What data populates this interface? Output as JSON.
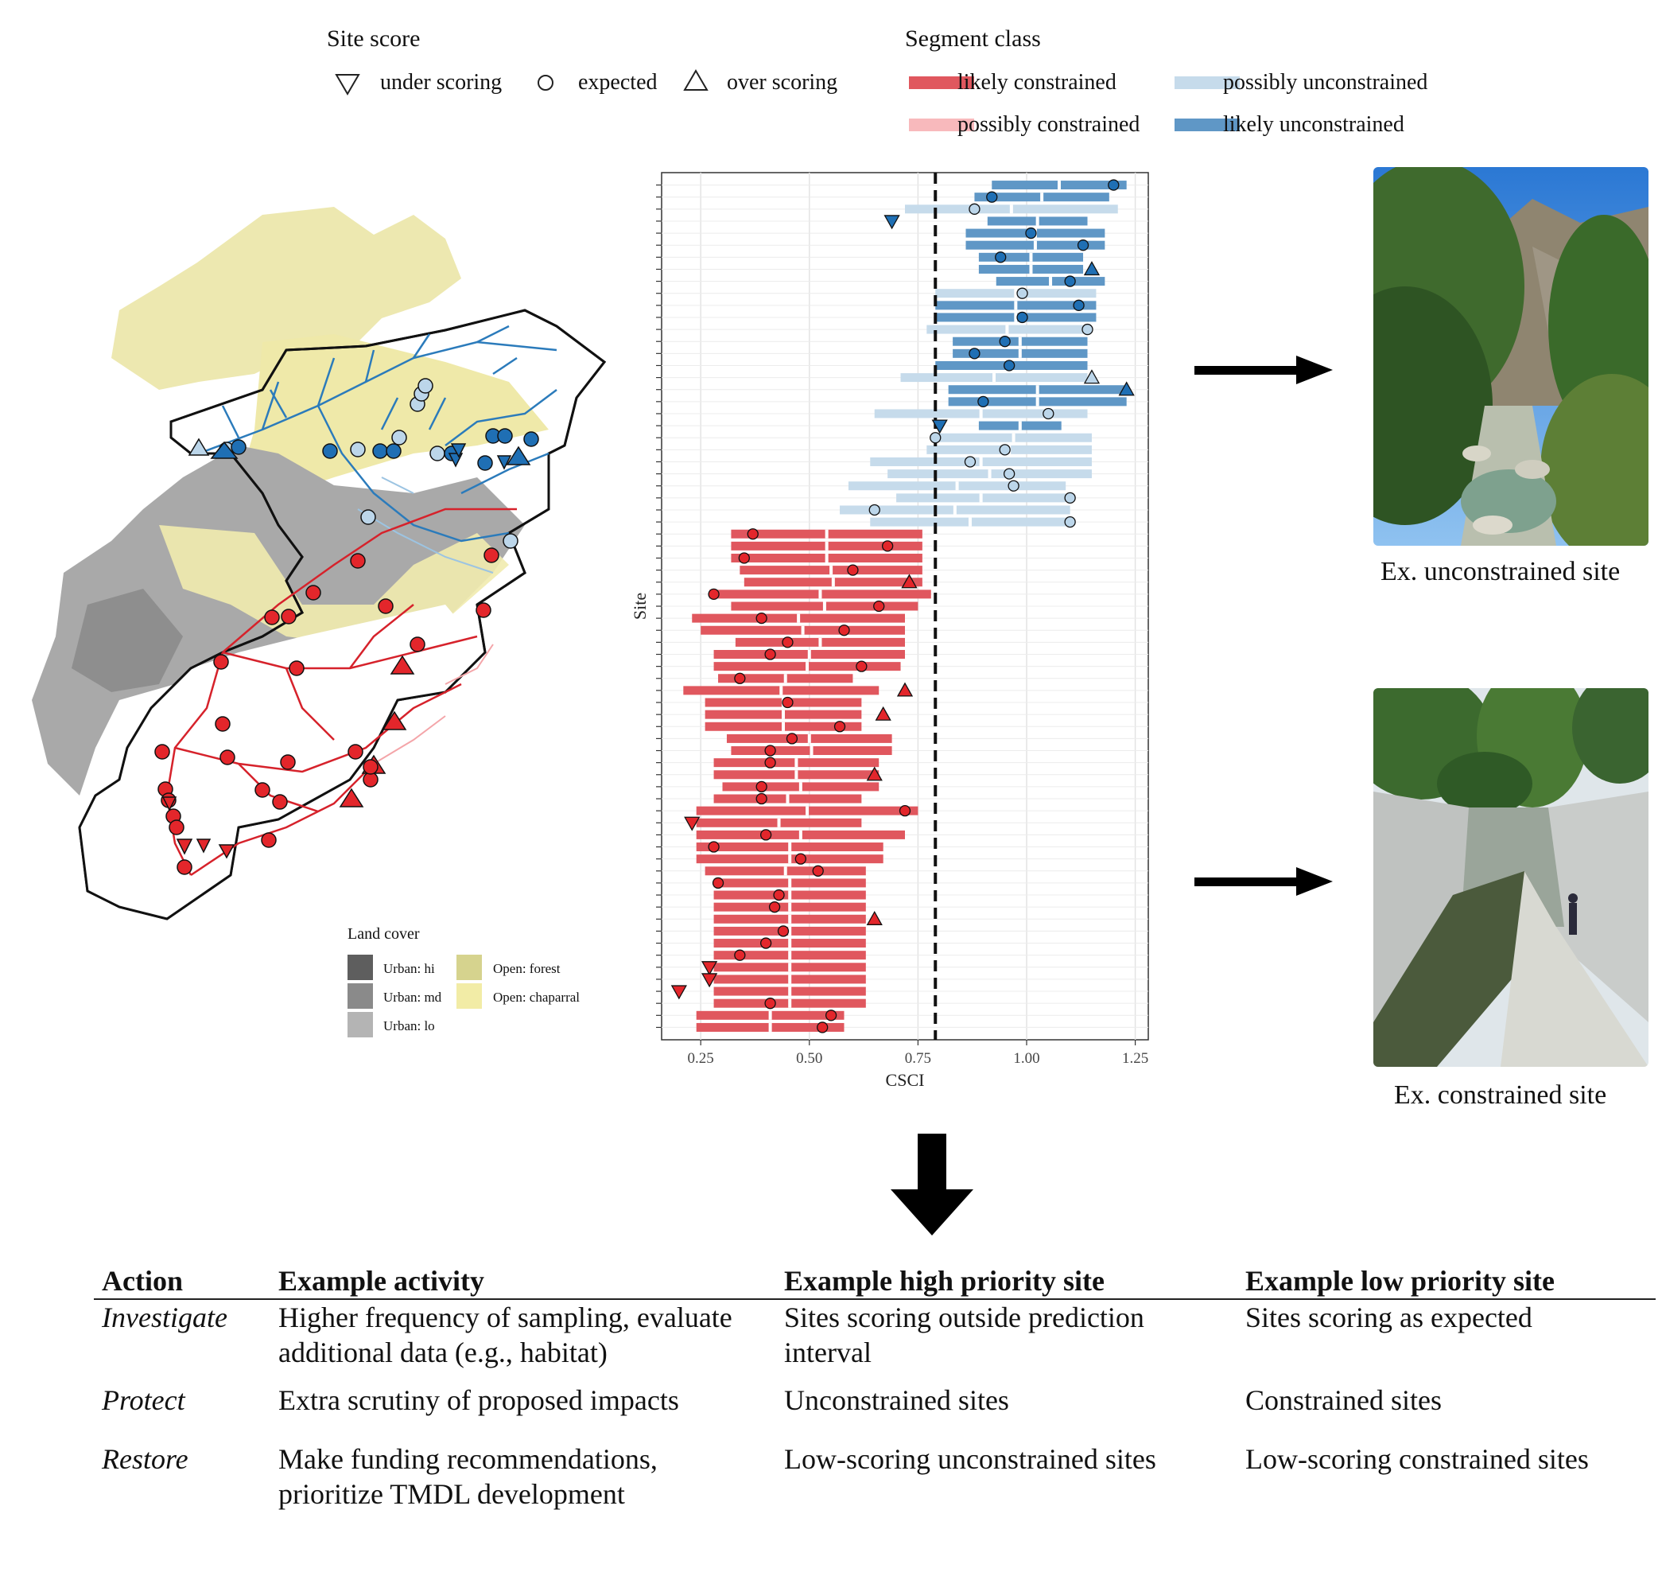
{
  "legend_site_score": {
    "title": "Site score",
    "items": [
      {
        "symbol": "triangle-down",
        "label": "under scoring"
      },
      {
        "symbol": "circle",
        "label": "expected"
      },
      {
        "symbol": "triangle-up",
        "label": "over scoring"
      }
    ]
  },
  "legend_segment_class": {
    "title": "Segment class",
    "items": [
      {
        "label": "likely constrained",
        "color": "#e0575e"
      },
      {
        "label": "possibly unconstrained",
        "color": "#c6dbeb"
      },
      {
        "label": "possibly constrained",
        "color": "#f8b9bc"
      },
      {
        "label": "likely unconstrained",
        "color": "#5f97c6"
      }
    ]
  },
  "legend_land_cover": {
    "title": "Land cover",
    "items": [
      {
        "label": "Urban: hi",
        "color": "#5e5e5e"
      },
      {
        "label": "Open: forest",
        "color": "#d6d38e"
      },
      {
        "label": "Urban: md",
        "color": "#8a8a8a"
      },
      {
        "label": "Open: chaparral",
        "color": "#f2eca6"
      },
      {
        "label": "Urban: lo",
        "color": "#b4b4b4"
      }
    ]
  },
  "chart_data": {
    "type": "scatter",
    "xlabel": "CSCI",
    "ylabel": "Site",
    "x_ticks": [
      "0.25",
      "0.50",
      "0.75",
      "1.00",
      "1.25"
    ],
    "xlim": [
      0.16,
      1.28
    ],
    "threshold": 0.79,
    "colors": {
      "lc": "#e0575e",
      "pc": "#f8b9bc",
      "pu": "#c6dbeb",
      "lu": "#5f97c6",
      "pt_red": "#e3262b",
      "pt_blue": "#1f6fb4",
      "pt_lblue": "#bcd6ea"
    },
    "sites": [
      {
        "lo": 0.92,
        "hi": 1.23,
        "csci": 1.2,
        "seg": "lu",
        "score": "expected"
      },
      {
        "lo": 0.88,
        "hi": 1.19,
        "csci": 0.92,
        "seg": "lu",
        "score": "expected"
      },
      {
        "lo": 0.72,
        "hi": 1.21,
        "csci": 0.88,
        "seg": "pu",
        "score": "expected"
      },
      {
        "lo": 0.91,
        "hi": 1.14,
        "csci": 0.69,
        "seg": "lu",
        "score": "under scoring"
      },
      {
        "lo": 0.86,
        "hi": 1.18,
        "csci": 1.01,
        "seg": "lu",
        "score": "expected"
      },
      {
        "lo": 0.86,
        "hi": 1.18,
        "csci": 1.13,
        "seg": "lu",
        "score": "expected"
      },
      {
        "lo": 0.89,
        "hi": 1.13,
        "csci": 0.94,
        "seg": "lu",
        "score": "expected"
      },
      {
        "lo": 0.89,
        "hi": 1.13,
        "csci": 1.15,
        "seg": "lu",
        "score": "over scoring"
      },
      {
        "lo": 0.93,
        "hi": 1.18,
        "csci": 1.1,
        "seg": "lu",
        "score": "expected"
      },
      {
        "lo": 0.79,
        "hi": 1.16,
        "csci": 0.99,
        "seg": "pu",
        "score": "expected"
      },
      {
        "lo": 0.79,
        "hi": 1.16,
        "csci": 1.12,
        "seg": "lu",
        "score": "expected"
      },
      {
        "lo": 0.79,
        "hi": 1.16,
        "csci": 0.99,
        "seg": "lu",
        "score": "expected"
      },
      {
        "lo": 0.77,
        "hi": 1.14,
        "csci": 1.14,
        "seg": "pu",
        "score": "expected"
      },
      {
        "lo": 0.83,
        "hi": 1.14,
        "csci": 0.95,
        "seg": "lu",
        "score": "expected"
      },
      {
        "lo": 0.83,
        "hi": 1.14,
        "csci": 0.88,
        "seg": "lu",
        "score": "expected"
      },
      {
        "lo": 0.79,
        "hi": 1.14,
        "csci": 0.96,
        "seg": "lu",
        "score": "expected"
      },
      {
        "lo": 0.71,
        "hi": 1.14,
        "csci": 1.15,
        "seg": "pu",
        "score": "over scoring"
      },
      {
        "lo": 0.82,
        "hi": 1.23,
        "csci": 1.23,
        "seg": "lu",
        "score": "over scoring"
      },
      {
        "lo": 0.82,
        "hi": 1.23,
        "csci": 0.9,
        "seg": "lu",
        "score": "expected"
      },
      {
        "lo": 0.65,
        "hi": 1.14,
        "csci": 1.05,
        "seg": "pu",
        "score": "expected"
      },
      {
        "lo": 0.89,
        "hi": 1.08,
        "csci": 0.8,
        "seg": "lu",
        "score": "under scoring"
      },
      {
        "lo": 0.79,
        "hi": 1.15,
        "csci": 0.79,
        "seg": "pu",
        "score": "expected"
      },
      {
        "lo": 0.77,
        "hi": 1.15,
        "csci": 0.95,
        "seg": "pu",
        "score": "expected"
      },
      {
        "lo": 0.64,
        "hi": 1.15,
        "csci": 0.87,
        "seg": "pu",
        "score": "expected"
      },
      {
        "lo": 0.68,
        "hi": 1.15,
        "csci": 0.96,
        "seg": "pu",
        "score": "expected"
      },
      {
        "lo": 0.59,
        "hi": 1.09,
        "csci": 0.97,
        "seg": "pu",
        "score": "expected"
      },
      {
        "lo": 0.7,
        "hi": 1.09,
        "csci": 1.1,
        "seg": "pu",
        "score": "expected"
      },
      {
        "lo": 0.57,
        "hi": 1.1,
        "csci": 0.65,
        "seg": "pu",
        "score": "expected"
      },
      {
        "lo": 0.64,
        "hi": 1.1,
        "csci": 1.1,
        "seg": "pu",
        "score": "expected"
      },
      {
        "lo": 0.32,
        "hi": 0.76,
        "csci": 0.37,
        "seg": "lc",
        "score": "expected"
      },
      {
        "lo": 0.32,
        "hi": 0.76,
        "csci": 0.68,
        "seg": "lc",
        "score": "expected"
      },
      {
        "lo": 0.32,
        "hi": 0.76,
        "csci": 0.35,
        "seg": "lc",
        "score": "expected"
      },
      {
        "lo": 0.34,
        "hi": 0.76,
        "csci": 0.6,
        "seg": "lc",
        "score": "expected"
      },
      {
        "lo": 0.35,
        "hi": 0.76,
        "csci": 0.73,
        "seg": "lc",
        "score": "over scoring"
      },
      {
        "lo": 0.27,
        "hi": 0.78,
        "csci": 0.28,
        "seg": "lc",
        "score": "expected"
      },
      {
        "lo": 0.32,
        "hi": 0.75,
        "csci": 0.66,
        "seg": "lc",
        "score": "expected"
      },
      {
        "lo": 0.23,
        "hi": 0.72,
        "csci": 0.39,
        "seg": "lc",
        "score": "expected"
      },
      {
        "lo": 0.25,
        "hi": 0.72,
        "csci": 0.58,
        "seg": "lc",
        "score": "expected"
      },
      {
        "lo": 0.33,
        "hi": 0.72,
        "csci": 0.45,
        "seg": "lc",
        "score": "expected"
      },
      {
        "lo": 0.28,
        "hi": 0.72,
        "csci": 0.41,
        "seg": "lc",
        "score": "expected"
      },
      {
        "lo": 0.28,
        "hi": 0.71,
        "csci": 0.62,
        "seg": "lc",
        "score": "expected"
      },
      {
        "lo": 0.29,
        "hi": 0.6,
        "csci": 0.34,
        "seg": "lc",
        "score": "expected"
      },
      {
        "lo": 0.21,
        "hi": 0.66,
        "csci": 0.72,
        "seg": "lc",
        "score": "over scoring"
      },
      {
        "lo": 0.26,
        "hi": 0.62,
        "csci": 0.45,
        "seg": "lc",
        "score": "expected"
      },
      {
        "lo": 0.26,
        "hi": 0.62,
        "csci": 0.67,
        "seg": "lc",
        "score": "over scoring"
      },
      {
        "lo": 0.26,
        "hi": 0.62,
        "csci": 0.57,
        "seg": "lc",
        "score": "expected"
      },
      {
        "lo": 0.31,
        "hi": 0.69,
        "csci": 0.46,
        "seg": "lc",
        "score": "expected"
      },
      {
        "lo": 0.32,
        "hi": 0.69,
        "csci": 0.41,
        "seg": "lc",
        "score": "expected"
      },
      {
        "lo": 0.28,
        "hi": 0.66,
        "csci": 0.41,
        "seg": "lc",
        "score": "expected"
      },
      {
        "lo": 0.28,
        "hi": 0.66,
        "csci": 0.65,
        "seg": "lc",
        "score": "over scoring"
      },
      {
        "lo": 0.3,
        "hi": 0.66,
        "csci": 0.39,
        "seg": "lc",
        "score": "expected"
      },
      {
        "lo": 0.28,
        "hi": 0.62,
        "csci": 0.39,
        "seg": "lc",
        "score": "expected"
      },
      {
        "lo": 0.24,
        "hi": 0.75,
        "csci": 0.72,
        "seg": "lc",
        "score": "expected"
      },
      {
        "lo": 0.24,
        "hi": 0.62,
        "csci": 0.23,
        "seg": "lc",
        "score": "under scoring"
      },
      {
        "lo": 0.24,
        "hi": 0.72,
        "csci": 0.4,
        "seg": "lc",
        "score": "expected"
      },
      {
        "lo": 0.24,
        "hi": 0.67,
        "csci": 0.28,
        "seg": "lc",
        "score": "expected"
      },
      {
        "lo": 0.24,
        "hi": 0.67,
        "csci": 0.48,
        "seg": "lc",
        "score": "expected"
      },
      {
        "lo": 0.26,
        "hi": 0.63,
        "csci": 0.52,
        "seg": "lc",
        "score": "expected"
      },
      {
        "lo": 0.28,
        "hi": 0.63,
        "csci": 0.29,
        "seg": "lc",
        "score": "expected"
      },
      {
        "lo": 0.28,
        "hi": 0.63,
        "csci": 0.43,
        "seg": "lc",
        "score": "expected"
      },
      {
        "lo": 0.28,
        "hi": 0.63,
        "csci": 0.42,
        "seg": "lc",
        "score": "expected"
      },
      {
        "lo": 0.28,
        "hi": 0.63,
        "csci": 0.65,
        "seg": "lc",
        "score": "over scoring"
      },
      {
        "lo": 0.28,
        "hi": 0.63,
        "csci": 0.44,
        "seg": "lc",
        "score": "expected"
      },
      {
        "lo": 0.28,
        "hi": 0.63,
        "csci": 0.4,
        "seg": "lc",
        "score": "expected"
      },
      {
        "lo": 0.28,
        "hi": 0.63,
        "csci": 0.34,
        "seg": "lc",
        "score": "expected"
      },
      {
        "lo": 0.28,
        "hi": 0.63,
        "csci": 0.27,
        "seg": "lc",
        "score": "under scoring"
      },
      {
        "lo": 0.28,
        "hi": 0.63,
        "csci": 0.27,
        "seg": "lc",
        "score": "under scoring"
      },
      {
        "lo": 0.28,
        "hi": 0.63,
        "csci": 0.2,
        "seg": "lc",
        "score": "under scoring"
      },
      {
        "lo": 0.28,
        "hi": 0.63,
        "csci": 0.41,
        "seg": "lc",
        "score": "expected"
      },
      {
        "lo": 0.24,
        "hi": 0.58,
        "csci": 0.55,
        "seg": "lc",
        "score": "expected"
      },
      {
        "lo": 0.24,
        "hi": 0.58,
        "csci": 0.53,
        "seg": "lc",
        "score": "expected"
      }
    ]
  },
  "arrows": [
    "right-arrow",
    "right-arrow",
    "down-arrow"
  ],
  "photo_captions": {
    "unconstrained": "Ex. unconstrained site",
    "constrained": "Ex. constrained site"
  },
  "actions_table": {
    "headers": [
      "Action",
      "Example activity",
      "Example high priority site",
      "Example low priority site"
    ],
    "rows": [
      {
        "action": "Investigate",
        "activity": "Higher frequency of sampling, evaluate additional data (e.g., habitat)",
        "high": "Sites scoring outside prediction interval",
        "low": "Sites scoring as expected"
      },
      {
        "action": "Protect",
        "activity": "Extra scrutiny of proposed impacts",
        "high": "Unconstrained sites",
        "low": "Constrained sites"
      },
      {
        "action": "Restore",
        "activity": "Make funding recommendations, prioritize TMDL development",
        "high": "Low-scoring unconstrained sites",
        "low": "Low-scoring constrained sites"
      }
    ]
  }
}
